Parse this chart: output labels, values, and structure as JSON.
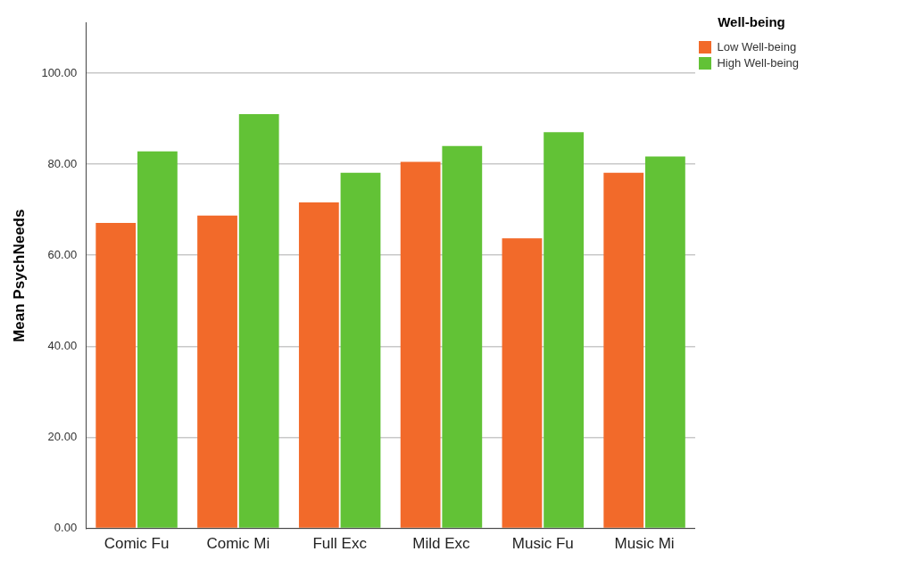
{
  "chart_data": {
    "type": "bar",
    "ylabel": "Mean PsychNeeds",
    "legend_title": "Well-being",
    "categories": [
      "Comic Fu",
      "Comic Mi",
      "Full Exc",
      "Mild Exc",
      "Music Fu",
      "Music Mi"
    ],
    "series": [
      {
        "name": "Low Well-being",
        "color": "#f26a2a",
        "values": [
          67.1,
          68.7,
          71.6,
          80.5,
          63.7,
          78.1
        ]
      },
      {
        "name": "High Well-being",
        "color": "#62c236",
        "values": [
          82.8,
          91.0,
          78.1,
          84.0,
          87.0,
          81.7
        ]
      }
    ],
    "ylim": [
      0,
      111
    ],
    "yticks": [
      {
        "value": 0,
        "label": "0.00"
      },
      {
        "value": 20,
        "label": "20.00"
      },
      {
        "value": 40,
        "label": "40.00"
      },
      {
        "value": 60,
        "label": "60.00"
      },
      {
        "value": 80,
        "label": "80.00"
      },
      {
        "value": 100,
        "label": "100.00"
      }
    ],
    "grid": "y",
    "legend": "top right"
  }
}
